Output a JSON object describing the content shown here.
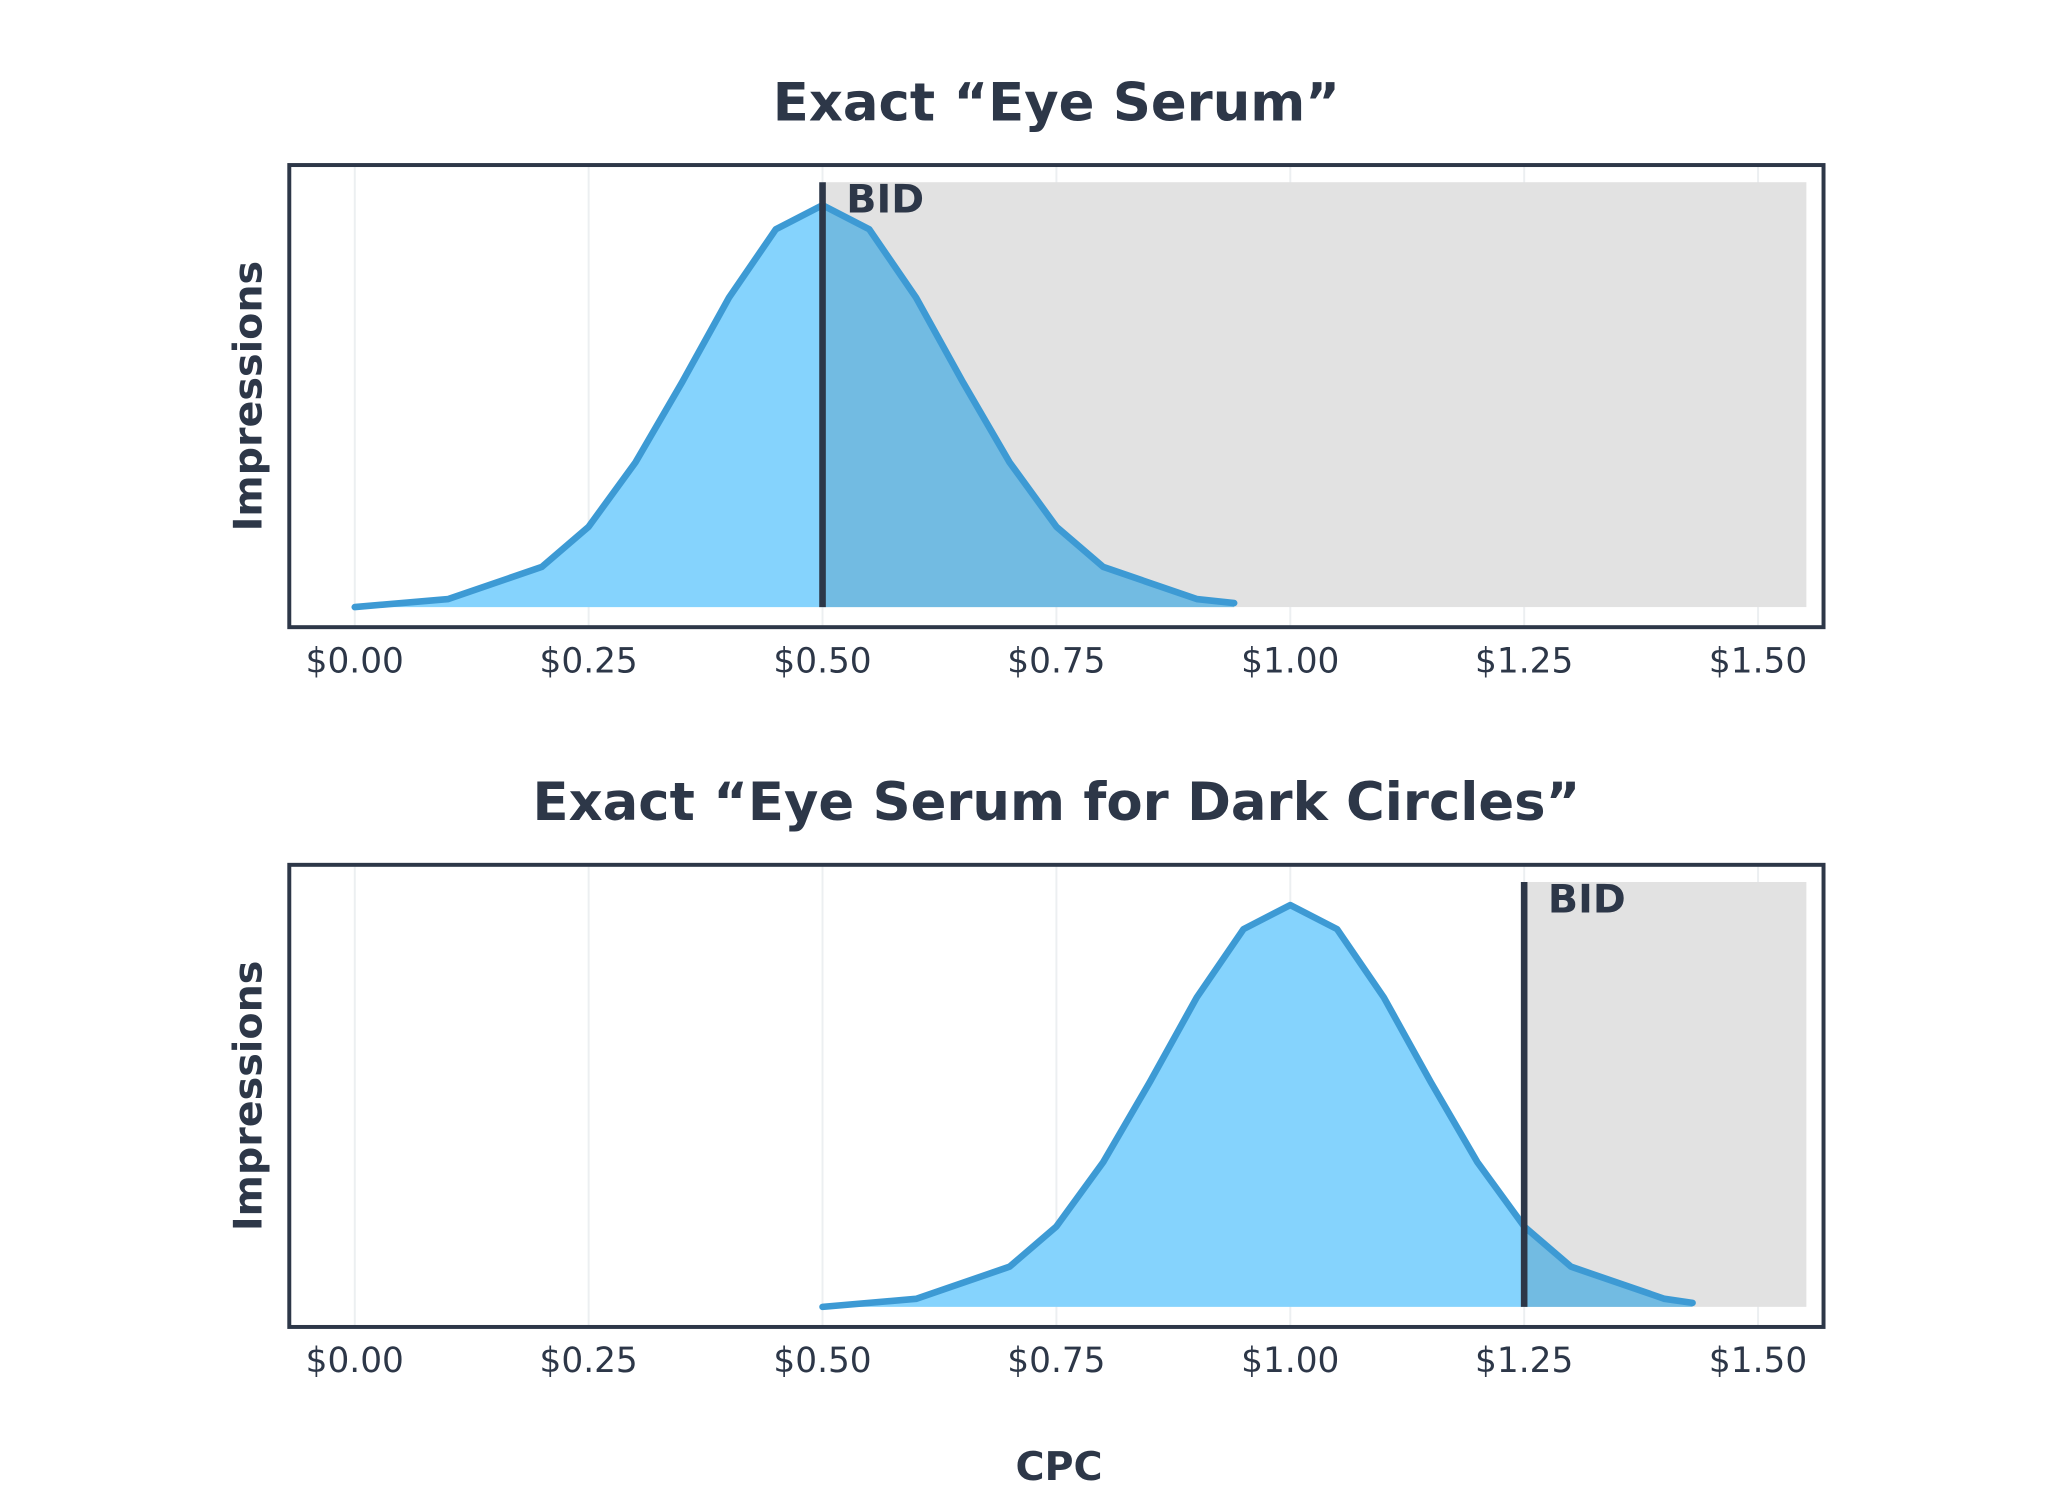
{
  "chart_data": [
    {
      "type": "area",
      "title": "Exact “Eye Serum”",
      "ylabel": "Impressions",
      "x": [
        0,
        0.1,
        0.2,
        0.25,
        0.3,
        0.35,
        0.4,
        0.45,
        0.5,
        0.55,
        0.6,
        0.65,
        0.7,
        0.75,
        0.8,
        0.9,
        0.94
      ],
      "values": [
        0.0,
        0.02,
        0.1,
        0.2,
        0.36,
        0.56,
        0.77,
        0.94,
        1.0,
        0.94,
        0.77,
        0.56,
        0.36,
        0.2,
        0.1,
        0.02,
        0.01
      ],
      "color": "#3d9ad4",
      "fill": "#85d3fd",
      "fill_above_bid": "#72bbe2",
      "shade": "#e2e2e2",
      "bid": {
        "value": 0.5,
        "label": "BID"
      },
      "xlim": [
        -0.07,
        1.57
      ],
      "ylim": [
        -0.05,
        1.1
      ],
      "xticks": [
        {
          "value": 0,
          "label": "$0.00"
        },
        {
          "value": 0.25,
          "label": "$0.25"
        },
        {
          "value": 0.5,
          "label": "$0.50"
        },
        {
          "value": 0.75,
          "label": "$0.75"
        },
        {
          "value": 1,
          "label": "$1.00"
        },
        {
          "value": 1.25,
          "label": "$1.25"
        },
        {
          "value": 1.5,
          "label": "$1.50"
        }
      ],
      "grid": true
    },
    {
      "type": "area",
      "title": "Exact “Eye Serum for Dark Circles”",
      "ylabel": "Impressions",
      "xlabel": "CPC",
      "x": [
        0.5,
        0.6,
        0.7,
        0.75,
        0.8,
        0.85,
        0.9,
        0.95,
        1.0,
        1.05,
        1.1,
        1.15,
        1.2,
        1.25,
        1.3,
        1.4,
        1.43
      ],
      "values": [
        0.0,
        0.02,
        0.1,
        0.2,
        0.36,
        0.56,
        0.77,
        0.94,
        1.0,
        0.94,
        0.77,
        0.56,
        0.36,
        0.2,
        0.1,
        0.02,
        0.01
      ],
      "color": "#3d9ad4",
      "fill": "#85d3fd",
      "fill_above_bid": "#72bbe2",
      "shade": "#e2e2e2",
      "bid": {
        "value": 1.25,
        "label": "BID"
      },
      "xlim": [
        -0.07,
        1.57
      ],
      "ylim": [
        -0.05,
        1.1
      ],
      "xticks": [
        {
          "value": 0,
          "label": "$0.00"
        },
        {
          "value": 0.25,
          "label": "$0.25"
        },
        {
          "value": 0.5,
          "label": "$0.50"
        },
        {
          "value": 0.75,
          "label": "$0.75"
        },
        {
          "value": 1,
          "label": "$1.00"
        },
        {
          "value": 1.25,
          "label": "$1.25"
        },
        {
          "value": 1.5,
          "label": "$1.50"
        }
      ],
      "grid": true
    }
  ]
}
